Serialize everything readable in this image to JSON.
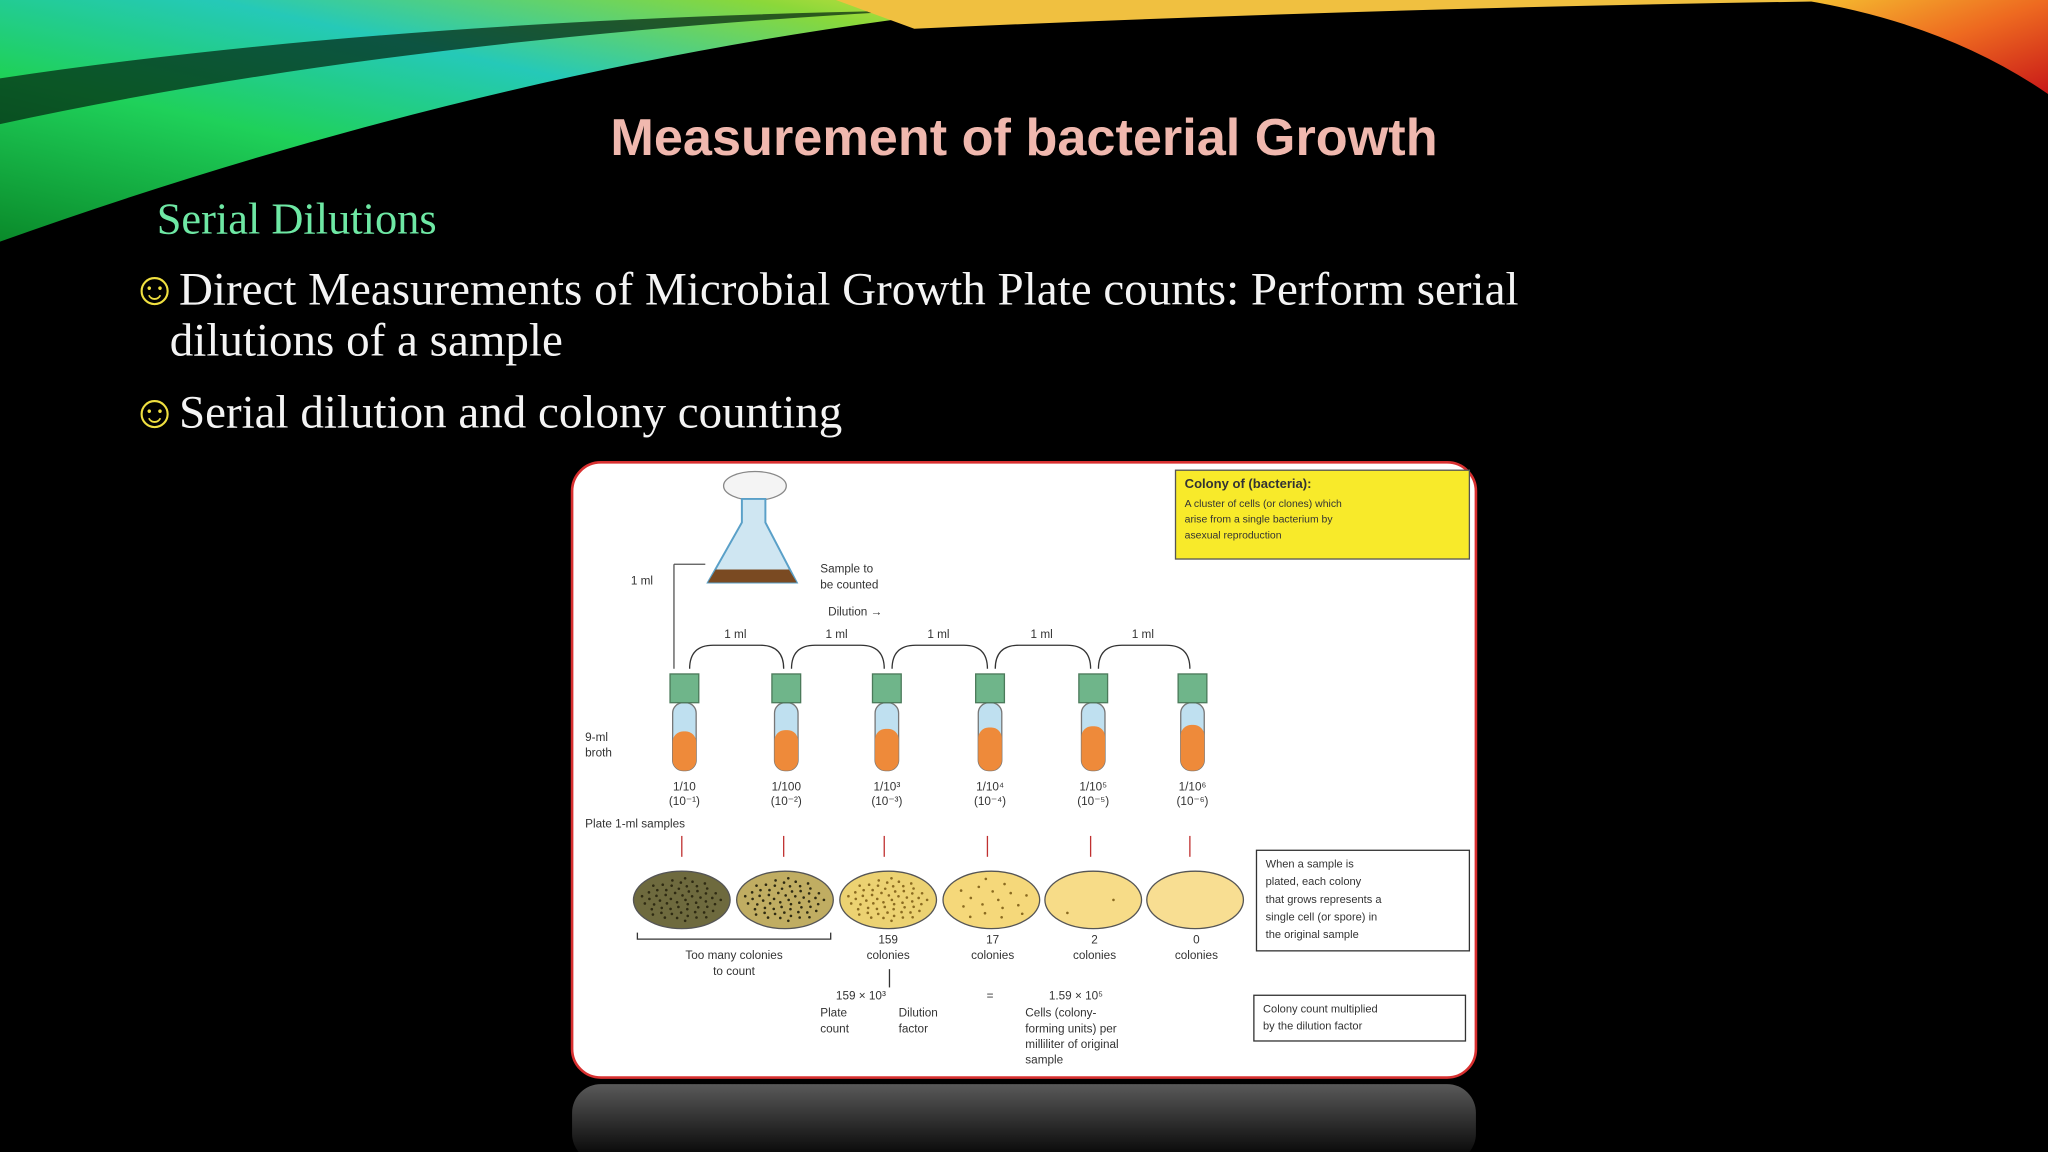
{
  "title": "Measurement of bacterial Growth",
  "subtitle": "Serial Dilutions",
  "bullets": [
    {
      "marker": "☺",
      "lines": [
        "Direct Measurements of Microbial Growth Plate counts: Perform serial",
        "dilutions of a sample"
      ]
    },
    {
      "marker": "☺",
      "lines": [
        "Serial dilution and colony counting"
      ]
    }
  ],
  "figure": {
    "definition_box": {
      "heading": "Colony of (bacteria):",
      "lines": [
        "A cluster of cells (or clones) which",
        "arise from a single bacterium by",
        "asexual reproduction"
      ]
    },
    "transfer_label": "1 ml",
    "sample_label": [
      "Sample to",
      "be counted"
    ],
    "dilution_label": "Dilution →",
    "transfer_labels": [
      "1 ml",
      "1 ml",
      "1 ml",
      "1 ml",
      "1 ml"
    ],
    "broth_label": [
      "9-ml",
      "broth"
    ],
    "tube_labels": [
      [
        "1/10",
        "(10⁻¹)"
      ],
      [
        "1/100",
        "(10⁻²)"
      ],
      [
        "1/10³",
        "(10⁻³)"
      ],
      [
        "1/10⁴",
        "(10⁻⁴)"
      ],
      [
        "1/10⁵",
        "(10⁻⁵)"
      ],
      [
        "1/10⁶",
        "(10⁻⁶)"
      ]
    ],
    "plate_label": "Plate 1-ml samples",
    "uncountable_label": [
      "Too many colonies",
      "to count"
    ],
    "colony_labels": [
      [
        "159",
        "colonies"
      ],
      [
        "17",
        "colonies"
      ],
      [
        "2",
        "colonies"
      ],
      [
        "0",
        "colonies"
      ]
    ],
    "plating_box": [
      "When a sample is",
      "plated, each colony",
      "that grows represents a",
      "single cell (or spore) in",
      "the original sample"
    ],
    "calculation": {
      "left": "159  ×  10³",
      "equals": "=",
      "right": "1.59  ×  10⁵",
      "left_notes": [
        "Plate",
        "count"
      ],
      "factor_notes": [
        "Dilution",
        "factor"
      ],
      "right_notes": [
        "Cells (colony-",
        "forming units) per",
        "milliliter of original",
        "sample"
      ]
    },
    "count_box": [
      "Colony count multiplied",
      "by the dilution factor"
    ]
  }
}
